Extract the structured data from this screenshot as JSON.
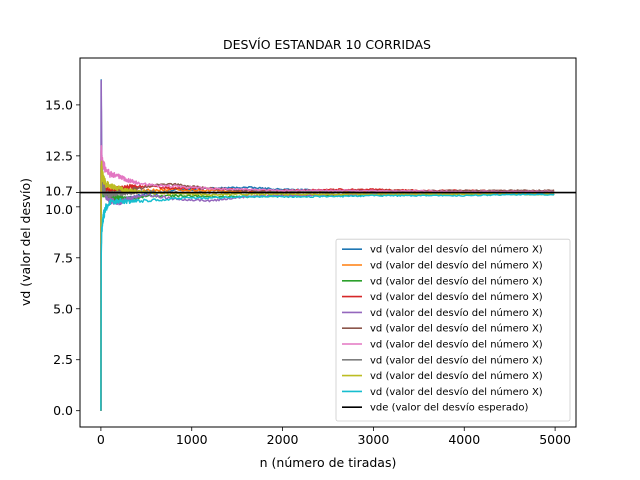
{
  "chart_data": {
    "type": "line",
    "title": "DESVÍO ESTANDAR 10 CORRIDAS",
    "xlabel": "n (número de tiradas)",
    "ylabel": "vd (valor del desvío)",
    "xlim": [
      -230,
      5230
    ],
    "ylim": [
      -0.8,
      17.3
    ],
    "xticks": [
      0,
      1000,
      2000,
      3000,
      4000,
      5000
    ],
    "xtick_labels": [
      "0",
      "1000",
      "2000",
      "3000",
      "4000",
      "5000"
    ],
    "yticks": [
      0.0,
      2.5,
      5.0,
      7.5,
      10.0,
      10.7,
      12.5,
      15.0
    ],
    "ytick_labels": [
      "0.0",
      "2.5",
      "5.0",
      "7.5",
      "10.0",
      "10.7",
      "12.5",
      "15.0"
    ],
    "grid": false,
    "legend_position": "lower-right",
    "series": [
      {
        "name": "vd (valor del desvío del número X)",
        "color": "#1f77b4",
        "x": [
          0,
          3,
          8,
          15,
          30,
          60,
          100,
          200,
          300,
          500,
          800,
          1200,
          1600,
          2000,
          2500,
          3000,
          3500,
          4000,
          4500,
          5000
        ],
        "y": [
          0,
          16.4,
          12.5,
          11.5,
          10.9,
          10.6,
          10.4,
          10.3,
          10.4,
          10.6,
          10.8,
          10.9,
          10.95,
          10.85,
          10.8,
          10.75,
          10.75,
          10.72,
          10.7,
          10.7
        ]
      },
      {
        "name": "vd (valor del desvío del número X)",
        "color": "#ff7f0e",
        "x": [
          0,
          3,
          8,
          15,
          30,
          60,
          100,
          200,
          300,
          500,
          800,
          1200,
          1600,
          2000,
          2500,
          3000,
          3500,
          4000,
          4500,
          5000
        ],
        "y": [
          0,
          11.5,
          10.8,
          11.2,
          11.0,
          10.9,
          10.8,
          10.75,
          10.7,
          10.8,
          10.85,
          10.8,
          10.75,
          10.7,
          10.72,
          10.72,
          10.7,
          10.7,
          10.7,
          10.68
        ]
      },
      {
        "name": "vd (valor del desvío del número X)",
        "color": "#2ca02c",
        "x": [
          0,
          3,
          8,
          15,
          30,
          60,
          100,
          200,
          300,
          500,
          800,
          1200,
          1600,
          2000,
          2500,
          3000,
          3500,
          4000,
          4500,
          5000
        ],
        "y": [
          0,
          12.0,
          11.2,
          10.8,
          10.7,
          10.6,
          10.5,
          10.45,
          10.4,
          10.5,
          10.55,
          10.5,
          10.5,
          10.55,
          10.55,
          10.6,
          10.6,
          10.62,
          10.62,
          10.6
        ]
      },
      {
        "name": "vd (valor del desvío del número X)",
        "color": "#d62728",
        "x": [
          0,
          3,
          8,
          15,
          30,
          60,
          100,
          200,
          300,
          500,
          800,
          1200,
          1600,
          2000,
          2500,
          3000,
          3500,
          4000,
          4500,
          5000
        ],
        "y": [
          0,
          12.8,
          11.9,
          11.2,
          11.0,
          10.9,
          10.8,
          10.9,
          11.0,
          11.0,
          10.9,
          10.9,
          10.8,
          10.8,
          10.85,
          10.85,
          10.8,
          10.8,
          10.78,
          10.75
        ]
      },
      {
        "name": "vd (valor del desvío del número X)",
        "color": "#9467bd",
        "x": [
          0,
          3,
          8,
          15,
          30,
          60,
          100,
          200,
          300,
          500,
          800,
          1200,
          1600,
          2000,
          2500,
          3000,
          3500,
          4000,
          4500,
          5000
        ],
        "y": [
          0,
          16.5,
          13.0,
          11.8,
          10.9,
          10.5,
          10.3,
          10.2,
          10.4,
          10.6,
          10.4,
          10.3,
          10.5,
          10.55,
          10.6,
          10.62,
          10.62,
          10.65,
          10.65,
          10.65
        ]
      },
      {
        "name": "vd (valor del desvío del número X)",
        "color": "#8c564b",
        "x": [
          0,
          3,
          8,
          15,
          30,
          60,
          100,
          200,
          300,
          500,
          800,
          1200,
          1600,
          2000,
          2500,
          3000,
          3500,
          4000,
          4500,
          5000
        ],
        "y": [
          0,
          12.2,
          11.5,
          11.0,
          10.8,
          10.7,
          10.6,
          10.7,
          10.8,
          11.0,
          11.1,
          10.9,
          10.8,
          10.75,
          10.78,
          10.8,
          10.78,
          10.8,
          10.8,
          10.8
        ]
      },
      {
        "name": "vd (valor del desvío del número X)",
        "color": "#e377c2",
        "x": [
          0,
          3,
          8,
          15,
          30,
          60,
          100,
          200,
          300,
          500,
          800,
          1200,
          1600,
          2000,
          2500,
          3000,
          3500,
          4000,
          4500,
          5000
        ],
        "y": [
          0,
          13.0,
          12.4,
          12.2,
          12.0,
          11.8,
          11.6,
          11.5,
          11.3,
          11.1,
          11.0,
          10.9,
          10.85,
          10.8,
          10.8,
          10.78,
          10.78,
          10.75,
          10.75,
          10.75
        ]
      },
      {
        "name": "vd (valor del desvío del número X)",
        "color": "#7f7f7f",
        "x": [
          0,
          3,
          8,
          15,
          30,
          60,
          100,
          200,
          300,
          500,
          800,
          1200,
          1600,
          2000,
          2500,
          3000,
          3500,
          4000,
          4500,
          5000
        ],
        "y": [
          0,
          10.5,
          10.9,
          11.0,
          10.8,
          10.7,
          10.6,
          10.65,
          10.7,
          10.75,
          10.7,
          10.7,
          10.7,
          10.72,
          10.72,
          10.7,
          10.7,
          10.7,
          10.7,
          10.7
        ]
      },
      {
        "name": "vd (valor del desvío del número X)",
        "color": "#bcbd22",
        "x": [
          0,
          3,
          8,
          15,
          30,
          60,
          100,
          200,
          300,
          500,
          800,
          1200,
          1600,
          2000,
          2500,
          3000,
          3500,
          4000,
          4500,
          5000
        ],
        "y": [
          0,
          11.8,
          12.0,
          11.6,
          11.3,
          11.1,
          11.0,
          10.9,
          10.8,
          10.7,
          10.65,
          10.6,
          10.62,
          10.62,
          10.62,
          10.62,
          10.63,
          10.63,
          10.62,
          10.62
        ]
      },
      {
        "name": "vd (valor del desvío del número X)",
        "color": "#17becf",
        "x": [
          0,
          3,
          8,
          15,
          30,
          60,
          100,
          200,
          300,
          500,
          800,
          1200,
          1600,
          2000,
          2500,
          3000,
          3500,
          4000,
          4500,
          5000
        ],
        "y": [
          0,
          7.2,
          8.6,
          9.2,
          9.6,
          10.0,
          10.2,
          10.3,
          10.25,
          10.3,
          10.4,
          10.45,
          10.5,
          10.5,
          10.5,
          10.55,
          10.55,
          10.55,
          10.6,
          10.6
        ]
      },
      {
        "name": "vde (valor del desvío esperado)",
        "color": "#000000",
        "x": [
          -230,
          5230
        ],
        "y": [
          10.7,
          10.7
        ]
      }
    ]
  }
}
